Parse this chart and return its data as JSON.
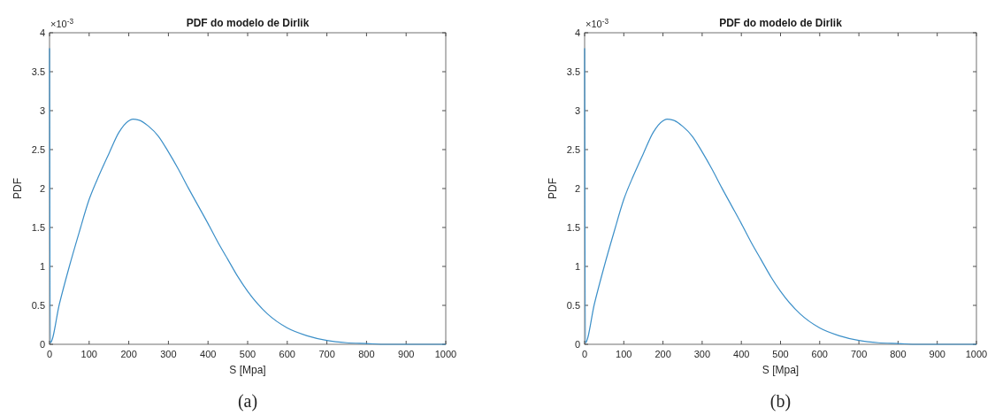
{
  "chart_data": [
    {
      "type": "line",
      "title": "PDF do modelo de Dirlik",
      "xlabel": "S [Mpa]",
      "ylabel": "PDF",
      "annotations": [
        "×10$^{-3}$",
        "(a)"
      ],
      "x": [
        0,
        2,
        25,
        50,
        75,
        100,
        125,
        150,
        175,
        200,
        210,
        225,
        250,
        275,
        300,
        325,
        350,
        375,
        400,
        425,
        450,
        475,
        500,
        550,
        600,
        650,
        700,
        750,
        800,
        850,
        900,
        950,
        1000
      ],
      "series": [
        {
          "color": "#3b8fc8",
          "values": [
            3.8,
            0.02,
            0.52,
            1.0,
            1.44,
            1.86,
            2.17,
            2.45,
            2.72,
            2.87,
            2.89,
            2.88,
            2.8,
            2.67,
            2.47,
            2.25,
            2.01,
            1.78,
            1.55,
            1.31,
            1.09,
            0.87,
            0.68,
            0.39,
            0.21,
            0.11,
            0.05,
            0.02,
            0.01,
            0,
            0,
            0,
            0
          ]
        }
      ],
      "xlim": [
        0,
        1000
      ],
      "xticks": [
        0,
        100,
        200,
        300,
        400,
        500,
        600,
        700,
        800,
        900,
        1000
      ],
      "ylim": [
        0,
        4
      ],
      "yticks": [
        0,
        0.5,
        1,
        1.5,
        2,
        2.5,
        3,
        3.5,
        4
      ],
      "grid": false
    },
    {
      "type": "line",
      "title": "PDF do modelo de Dirlik",
      "xlabel": "S [Mpa]",
      "ylabel": "PDF",
      "annotations": [
        "×10$^{-3}$",
        "(b)"
      ],
      "x": [
        0,
        2,
        25,
        50,
        75,
        100,
        125,
        150,
        175,
        200,
        210,
        225,
        250,
        275,
        300,
        325,
        350,
        375,
        400,
        425,
        450,
        475,
        500,
        550,
        600,
        650,
        700,
        750,
        800,
        850,
        900,
        950,
        1000
      ],
      "series": [
        {
          "color": "#3b8fc8",
          "values": [
            3.8,
            0.02,
            0.52,
            1.0,
            1.44,
            1.86,
            2.17,
            2.45,
            2.72,
            2.87,
            2.89,
            2.88,
            2.8,
            2.67,
            2.47,
            2.25,
            2.01,
            1.78,
            1.55,
            1.31,
            1.09,
            0.87,
            0.68,
            0.39,
            0.21,
            0.11,
            0.05,
            0.02,
            0.01,
            0,
            0,
            0,
            0
          ]
        }
      ],
      "xlim": [
        0,
        1000
      ],
      "xticks": [
        0,
        100,
        200,
        300,
        400,
        500,
        600,
        700,
        800,
        900,
        1000
      ],
      "ylim": [
        0,
        4
      ],
      "yticks": [
        0,
        0.5,
        1,
        1.5,
        2,
        2.5,
        3,
        3.5,
        4
      ],
      "grid": false
    }
  ]
}
